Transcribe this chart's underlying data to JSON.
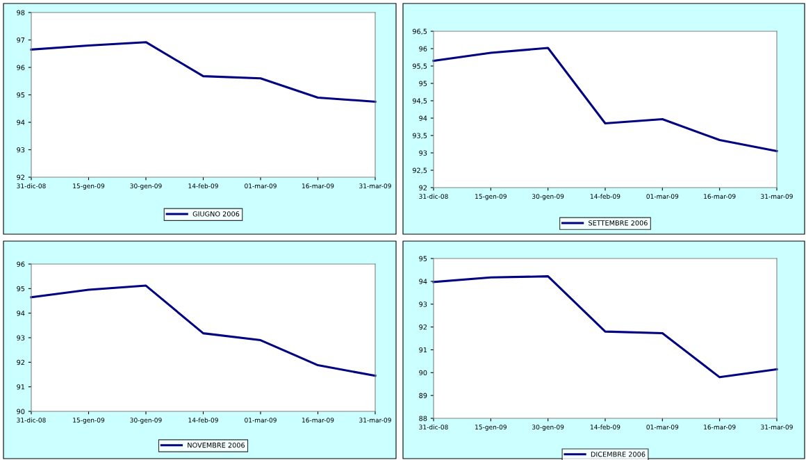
{
  "chart_data": [
    {
      "type": "line",
      "categories": [
        "31-dic-08",
        "15-gen-09",
        "30-gen-09",
        "14-feb-09",
        "01-mar-09",
        "16-mar-09",
        "31-mar-09"
      ],
      "ylim": [
        92,
        98
      ],
      "yticks": [
        92,
        93,
        94,
        95,
        96,
        97,
        98
      ],
      "grid": false,
      "legend": "bottom",
      "marker": "none",
      "series": [
        {
          "name": "GIUGNO 2006",
          "color": "#000080",
          "values": [
            96.65,
            96.8,
            96.92,
            95.68,
            95.6,
            94.9,
            94.75
          ]
        }
      ]
    },
    {
      "type": "line",
      "categories": [
        "31-dic-08",
        "15-gen-09",
        "30-gen-09",
        "14-feb-09",
        "01-mar-09",
        "16-mar-09",
        "31-mar-09"
      ],
      "ylim": [
        92,
        96.5
      ],
      "yticks": [
        92,
        {
          "value": 92.5,
          "label": "92,5"
        },
        93,
        {
          "value": 93.5,
          "label": "93,5"
        },
        94,
        {
          "value": 94.5,
          "label": "94,5"
        },
        95,
        {
          "value": 95.5,
          "label": "95,5"
        },
        96,
        {
          "value": 96.5,
          "label": "96,5"
        }
      ],
      "grid": false,
      "legend": "bottom",
      "marker": "none",
      "series": [
        {
          "name": "SETTEMBRE 2006",
          "color": "#000080",
          "values": [
            95.65,
            95.88,
            96.02,
            93.85,
            93.97,
            93.37,
            93.05
          ]
        }
      ]
    },
    {
      "type": "line",
      "categories": [
        "31-dic-08",
        "15-gen-09",
        "30-gen-09",
        "14-feb-09",
        "01-mar-09",
        "16-mar-09",
        "31-mar-09"
      ],
      "ylim": [
        90,
        96
      ],
      "yticks": [
        90,
        91,
        92,
        93,
        94,
        95,
        96
      ],
      "grid": false,
      "legend": "bottom",
      "marker": "none",
      "series": [
        {
          "name": "NOVEMBRE 2006",
          "color": "#000080",
          "values": [
            94.65,
            94.95,
            95.12,
            93.18,
            92.9,
            91.88,
            91.45
          ]
        }
      ]
    },
    {
      "type": "line",
      "categories": [
        "31-dic-08",
        "15-gen-09",
        "30-gen-09",
        "14-feb-09",
        "01-mar-09",
        "16-mar-09",
        "31-mar-09"
      ],
      "ylim": [
        88,
        95
      ],
      "yticks": [
        88,
        89,
        90,
        91,
        92,
        93,
        94,
        95
      ],
      "grid": false,
      "legend": "bottom",
      "marker": "none",
      "series": [
        {
          "name": "DICEMBRE 2006",
          "color": "#000080",
          "values": [
            93.97,
            94.17,
            94.22,
            91.8,
            91.73,
            89.8,
            90.15
          ]
        }
      ]
    }
  ]
}
